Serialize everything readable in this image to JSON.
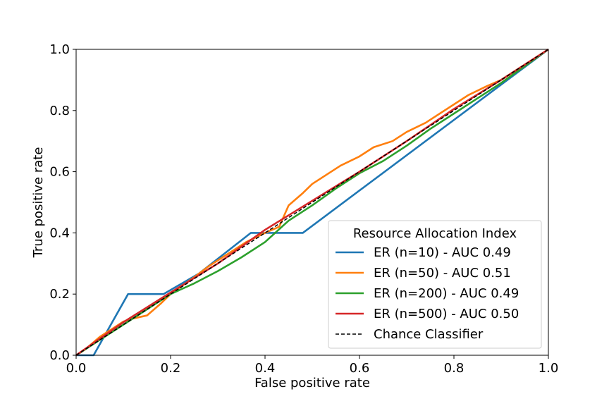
{
  "chart_data": {
    "type": "line",
    "xlabel": "False positive rate",
    "ylabel": "True positive rate",
    "xlim": [
      0,
      1
    ],
    "ylim": [
      0,
      1
    ],
    "xticks": [
      "0.0",
      "0.2",
      "0.4",
      "0.6",
      "0.8",
      "1.0"
    ],
    "yticks": [
      "0.0",
      "0.2",
      "0.4",
      "0.6",
      "0.8",
      "1.0"
    ],
    "grid": false,
    "legend": {
      "title": "Resource Allocation Index",
      "position": "lower-right"
    },
    "series": [
      {
        "name": "ER (n=10) - AUC 0.49",
        "color": "#1f77b4",
        "x": [
          0.0,
          0.037,
          0.11,
          0.185,
          0.26,
          0.37,
          0.48,
          1.0
        ],
        "y": [
          0.0,
          0.0,
          0.2,
          0.2,
          0.267,
          0.4,
          0.4,
          1.0
        ]
      },
      {
        "name": "ER (n=50) - AUC 0.51",
        "color": "#ff7f0e",
        "x": [
          0.0,
          0.02,
          0.05,
          0.08,
          0.1,
          0.12,
          0.15,
          0.18,
          0.2,
          0.25,
          0.28,
          0.3,
          0.33,
          0.36,
          0.4,
          0.43,
          0.45,
          0.48,
          0.5,
          0.53,
          0.56,
          0.6,
          0.63,
          0.67,
          0.7,
          0.74,
          0.77,
          0.8,
          0.83,
          0.87,
          0.9,
          0.93,
          0.96,
          1.0
        ],
        "y": [
          0.0,
          0.02,
          0.06,
          0.09,
          0.11,
          0.12,
          0.13,
          0.17,
          0.2,
          0.255,
          0.29,
          0.31,
          0.34,
          0.37,
          0.4,
          0.42,
          0.49,
          0.53,
          0.56,
          0.59,
          0.62,
          0.65,
          0.68,
          0.7,
          0.73,
          0.76,
          0.79,
          0.82,
          0.85,
          0.88,
          0.9,
          0.93,
          0.96,
          1.0
        ]
      },
      {
        "name": "ER (n=200) - AUC 0.49",
        "color": "#2ca02c",
        "x": [
          0.0,
          0.05,
          0.1,
          0.15,
          0.2,
          0.25,
          0.3,
          0.35,
          0.4,
          0.45,
          0.5,
          0.55,
          0.6,
          0.65,
          0.7,
          0.75,
          0.8,
          0.85,
          0.9,
          0.95,
          1.0
        ],
        "y": [
          0.0,
          0.05,
          0.1,
          0.15,
          0.2,
          0.235,
          0.275,
          0.32,
          0.37,
          0.44,
          0.49,
          0.545,
          0.595,
          0.635,
          0.685,
          0.74,
          0.79,
          0.84,
          0.89,
          0.945,
          1.0
        ]
      },
      {
        "name": "ER (n=500) - AUC 0.50",
        "color": "#d62728",
        "x": [
          0.0,
          0.1,
          0.2,
          0.3,
          0.4,
          0.5,
          0.6,
          0.7,
          0.8,
          0.9,
          1.0
        ],
        "y": [
          0.0,
          0.108,
          0.205,
          0.3,
          0.41,
          0.505,
          0.6,
          0.7,
          0.805,
          0.9,
          1.0
        ]
      },
      {
        "name": "Chance Classifier",
        "color": "#000000",
        "dashed": true,
        "x": [
          0.0,
          1.0
        ],
        "y": [
          0.0,
          1.0
        ]
      }
    ]
  }
}
